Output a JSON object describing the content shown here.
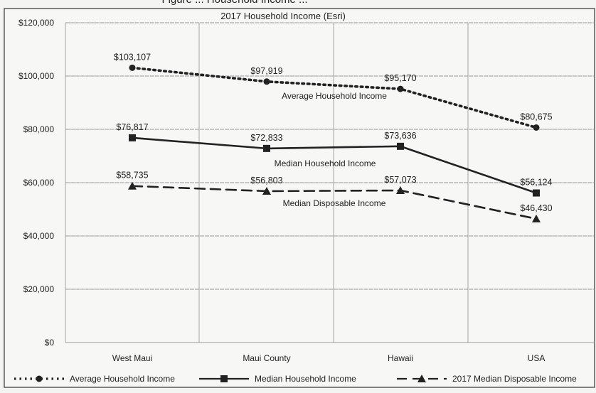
{
  "header_fragment": "Figure ... Household Income ...",
  "chart_data": {
    "type": "line",
    "title": "2017 Household Income (Esri)",
    "categories": [
      "West Maui",
      "Maui County",
      "Hawaii",
      "USA"
    ],
    "ylim": [
      0,
      120000
    ],
    "yticks": [
      0,
      20000,
      40000,
      60000,
      80000,
      100000,
      120000
    ],
    "ytick_labels": [
      "$0",
      "$20,000",
      "$40,000",
      "$60,000",
      "$80,000",
      "$100,000",
      "$120,000"
    ],
    "grid": true,
    "legend_position": "bottom",
    "series": [
      {
        "name": "Average Household Income",
        "values": [
          103107,
          97919,
          95170,
          80675
        ],
        "labels": [
          "$103,107",
          "$97,919",
          "$95,170",
          "$80,675"
        ],
        "style": "dotted",
        "marker": "circle",
        "color": "#222222",
        "annotation": "Average Household Income"
      },
      {
        "name": "Median Household Income",
        "values": [
          76817,
          72833,
          73636,
          56124
        ],
        "labels": [
          "$76,817",
          "$72,833",
          "$73,636",
          "$56,124"
        ],
        "style": "solid",
        "marker": "square",
        "color": "#222222",
        "annotation": "Median Household Income"
      },
      {
        "name": "2017 Median Disposable Income",
        "values": [
          58735,
          56803,
          57073,
          46430
        ],
        "labels": [
          "$58,735",
          "$56,803",
          "$57,073",
          "$46,430"
        ],
        "style": "dashed",
        "marker": "triangle",
        "color": "#222222",
        "annotation": "Median Disposable Income"
      }
    ]
  }
}
